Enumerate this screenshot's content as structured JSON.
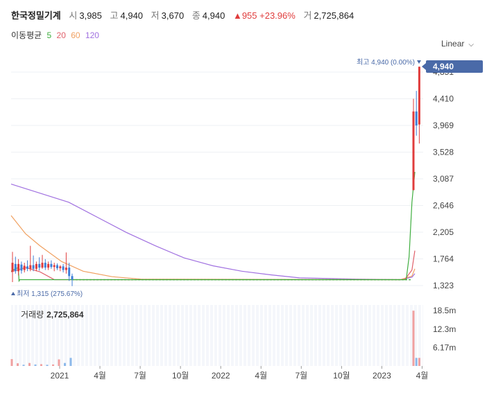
{
  "header": {
    "stock_name": "한국정밀기계",
    "open_label": "시",
    "open_value": "3,985",
    "high_label": "고",
    "high_value": "4,940",
    "low_label": "저",
    "low_value": "3,670",
    "close_label": "종",
    "close_value": "4,940",
    "change_value": "▲955 +23.96%",
    "volume_label": "거",
    "volume_value": "2,725,864"
  },
  "ma_legend": {
    "label": "이동평균",
    "p5": "5",
    "p20": "20",
    "p60": "60",
    "p120": "120"
  },
  "scale_button": {
    "label": "Linear"
  },
  "volume_panel": {
    "label": "거래량",
    "value": "2,725,864"
  },
  "colors": {
    "up": "#e03c3c",
    "down": "#3d7fd9",
    "ma5": "#3fae3f",
    "ma20": "#e0606a",
    "ma60": "#f0a060",
    "ma120": "#a070e0",
    "price_tag": "#4a6aa8"
  },
  "chart_data": {
    "type": "candlestick",
    "x_ticks": [
      "2021",
      "4월",
      "7월",
      "10월",
      "2022",
      "4월",
      "7월",
      "10월",
      "2023",
      "4월"
    ],
    "price_ticks": [
      "4,851",
      "4,410",
      "3,969",
      "3,528",
      "3,087",
      "2,646",
      "2,205",
      "1,764",
      "1,323"
    ],
    "price_range": [
      1323,
      4851
    ],
    "current_price": "4,940",
    "high_marker": "최고 4,940 (0.00%)",
    "low_marker": "최저 1,315 (275.67%)",
    "volume_ticks": [
      "18.5m",
      "12.3m",
      "6.17m"
    ],
    "candles_early": [
      {
        "o": 1550,
        "h": 1880,
        "l": 1380,
        "c": 1700
      },
      {
        "o": 1680,
        "h": 1800,
        "l": 1520,
        "c": 1560
      },
      {
        "o": 1560,
        "h": 1760,
        "l": 1490,
        "c": 1680
      },
      {
        "o": 1670,
        "h": 1720,
        "l": 1520,
        "c": 1570
      },
      {
        "o": 1580,
        "h": 1700,
        "l": 1540,
        "c": 1650
      },
      {
        "o": 1640,
        "h": 1740,
        "l": 1560,
        "c": 1600
      },
      {
        "o": 1600,
        "h": 1980,
        "l": 1560,
        "c": 1660
      },
      {
        "o": 1660,
        "h": 1820,
        "l": 1560,
        "c": 1600
      },
      {
        "o": 1600,
        "h": 1720,
        "l": 1560,
        "c": 1680
      },
      {
        "o": 1680,
        "h": 1790,
        "l": 1570,
        "c": 1620
      },
      {
        "o": 1620,
        "h": 1830,
        "l": 1600,
        "c": 1700
      },
      {
        "o": 1700,
        "h": 1760,
        "l": 1580,
        "c": 1620
      },
      {
        "o": 1620,
        "h": 1720,
        "l": 1580,
        "c": 1680
      },
      {
        "o": 1680,
        "h": 1740,
        "l": 1600,
        "c": 1630
      },
      {
        "o": 1630,
        "h": 1700,
        "l": 1560,
        "c": 1660
      },
      {
        "o": 1660,
        "h": 1690,
        "l": 1580,
        "c": 1610
      },
      {
        "o": 1610,
        "h": 1660,
        "l": 1560,
        "c": 1640
      },
      {
        "o": 1640,
        "h": 1680,
        "l": 1540,
        "c": 1580
      },
      {
        "o": 1580,
        "h": 1870,
        "l": 1520,
        "c": 1620
      },
      {
        "o": 1620,
        "h": 1700,
        "l": 1400,
        "c": 1480
      },
      {
        "o": 1480,
        "h": 1520,
        "l": 1315,
        "c": 1420
      }
    ],
    "candles_late": [
      {
        "o": 2900,
        "h": 4410,
        "l": 2900,
        "c": 4200
      },
      {
        "o": 4200,
        "h": 4540,
        "l": 3800,
        "c": 3969
      },
      {
        "o": 3985,
        "h": 4940,
        "l": 3670,
        "c": 4940
      }
    ],
    "flat_price": 1420,
    "ma5": [
      [
        0.0,
        1560
      ],
      [
        0.3,
        1600
      ],
      [
        0.5,
        1620
      ],
      [
        0.55,
        1400
      ],
      [
        0.6,
        1420
      ],
      [
        27.4,
        1420
      ],
      [
        27.6,
        1800
      ],
      [
        27.8,
        2700
      ],
      [
        28.0,
        3200
      ]
    ],
    "ma20": [
      [
        0.0,
        1550
      ],
      [
        1.0,
        1620
      ],
      [
        2.0,
        1550
      ],
      [
        3.0,
        1420
      ],
      [
        27.3,
        1420
      ],
      [
        27.8,
        1580
      ],
      [
        28.0,
        1900
      ]
    ],
    "ma60": [
      [
        0.0,
        2480
      ],
      [
        1.0,
        2180
      ],
      [
        2.0,
        1980
      ],
      [
        3.5,
        1720
      ],
      [
        5.0,
        1560
      ],
      [
        7.0,
        1470
      ],
      [
        9.0,
        1430
      ],
      [
        27.0,
        1420
      ],
      [
        27.8,
        1480
      ],
      [
        28.0,
        1600
      ]
    ],
    "ma120": [
      [
        0.0,
        3000
      ],
      [
        2.0,
        2850
      ],
      [
        4.0,
        2700
      ],
      [
        6.0,
        2450
      ],
      [
        8.0,
        2200
      ],
      [
        10.0,
        1980
      ],
      [
        12.0,
        1780
      ],
      [
        14.0,
        1650
      ],
      [
        16.0,
        1560
      ],
      [
        18.0,
        1500
      ],
      [
        20.0,
        1450
      ],
      [
        24.0,
        1430
      ],
      [
        27.0,
        1420
      ],
      [
        27.8,
        1460
      ],
      [
        28.0,
        1520
      ]
    ],
    "volume_early": [
      {
        "v": 2.3,
        "up": true
      },
      {
        "v": 0.9,
        "up": true
      },
      {
        "v": 0.4,
        "up": false
      },
      {
        "v": 1.0,
        "up": true
      },
      {
        "v": 0.5,
        "up": false
      },
      {
        "v": 0.6,
        "up": true
      },
      {
        "v": 0.4,
        "up": false
      },
      {
        "v": 0.5,
        "up": true
      },
      {
        "v": 2.2,
        "up": true
      },
      {
        "v": 1.0,
        "up": false
      },
      {
        "v": 2.7,
        "up": false
      }
    ],
    "volume_late": [
      {
        "v": 18.5,
        "up": true
      },
      {
        "v": 2.7,
        "up": false
      },
      {
        "v": 2.7,
        "up": true
      }
    ]
  }
}
